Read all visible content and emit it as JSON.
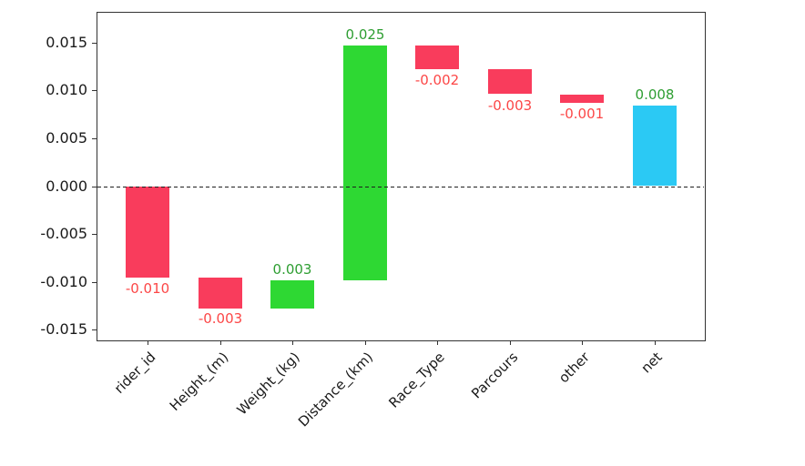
{
  "chart_data": {
    "type": "bar",
    "subtype": "waterfall",
    "title": "",
    "xlabel": "",
    "ylabel": "",
    "categories": [
      "rider_id",
      "Height_(m)",
      "Weight_(kg)",
      "Distance_(km)",
      "Race_Type",
      "Parcours",
      "other",
      "net"
    ],
    "bars": [
      {
        "category": "rider_id",
        "value": -0.01,
        "value_label": "-0.010",
        "start": 0.0,
        "end": -0.0095,
        "kind": "negative"
      },
      {
        "category": "Height_(m)",
        "value": -0.003,
        "value_label": "-0.003",
        "start": -0.0095,
        "end": -0.0127,
        "kind": "negative"
      },
      {
        "category": "Weight_(kg)",
        "value": 0.003,
        "value_label": "0.003",
        "start": -0.0127,
        "end": -0.0098,
        "kind": "positive"
      },
      {
        "category": "Distance_(km)",
        "value": 0.025,
        "value_label": "0.025",
        "start": -0.0098,
        "end": 0.0147,
        "kind": "positive"
      },
      {
        "category": "Race_Type",
        "value": -0.002,
        "value_label": "-0.002",
        "start": 0.0147,
        "end": 0.0122,
        "kind": "negative"
      },
      {
        "category": "Parcours",
        "value": -0.003,
        "value_label": "-0.003",
        "start": 0.0122,
        "end": 0.0096,
        "kind": "negative"
      },
      {
        "category": "other",
        "value": -0.001,
        "value_label": "-0.001",
        "start": 0.0096,
        "end": 0.0087,
        "kind": "negative"
      },
      {
        "category": "net",
        "value": 0.008,
        "value_label": "0.008",
        "start": 0.0,
        "end": 0.0084,
        "kind": "net"
      }
    ],
    "y_ticks": [
      0.015,
      0.01,
      0.005,
      0.0,
      -0.005,
      -0.01,
      -0.015
    ],
    "y_tick_labels": [
      "0.015",
      "0.010",
      "0.005",
      "0.000",
      "-0.005",
      "-0.010",
      "-0.015"
    ],
    "ylim": [
      -0.016,
      0.0182
    ],
    "grid": false,
    "legend": false,
    "zero_line": {
      "style": "dashed",
      "color": "#1f1f1f",
      "y": 0.0
    },
    "colors": {
      "bar_negative": "#f93c5c",
      "bar_positive": "#2ed833",
      "bar_net": "#2bc9f4",
      "label_negative": "#fc4747",
      "label_positive": "#2e9e32",
      "axis": "#333333"
    }
  }
}
